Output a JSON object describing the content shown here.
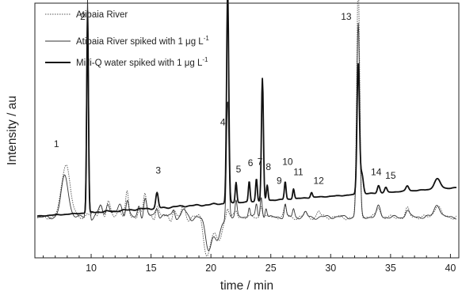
{
  "chart_data": {
    "type": "line",
    "xlabel": "time / min",
    "ylabel": "Intensity / au",
    "xlim": [
      5.3,
      40.7
    ],
    "ylim": [
      0,
      1.0
    ],
    "x_ticks": [
      10,
      15,
      20,
      25,
      30,
      35,
      40
    ],
    "y_ticks_shown": false,
    "grid": false,
    "legend_position": "top-left",
    "series": [
      {
        "name": "Atibaia River",
        "style": "dotted",
        "color": "#555555",
        "baseline": 0.16,
        "noise": 0.025,
        "noise_phase": 1.7,
        "peaks": [
          [
            7.9,
            0.21,
            0.35
          ],
          [
            9.7,
            0.02,
            0.15
          ],
          [
            10.8,
            0.05,
            0.15
          ],
          [
            11.4,
            0.05,
            0.15
          ],
          [
            12.4,
            0.04,
            0.2
          ],
          [
            13.0,
            0.09,
            0.12
          ],
          [
            14.0,
            0.05,
            0.12
          ],
          [
            14.5,
            0.08,
            0.12
          ],
          [
            15.5,
            0.05,
            0.12
          ],
          [
            16.9,
            0.04,
            0.12
          ],
          [
            17.7,
            0.03,
            0.15
          ],
          [
            19.7,
            -0.14,
            0.3
          ],
          [
            20.6,
            -0.1,
            0.25
          ],
          [
            21.4,
            0.04,
            0.1
          ],
          [
            22.1,
            0.02,
            0.1
          ],
          [
            24.2,
            0.05,
            0.1
          ],
          [
            26.2,
            0.04,
            0.1
          ],
          [
            27.9,
            0.02,
            0.12
          ],
          [
            29.0,
            0.02,
            0.12
          ],
          [
            32.3,
            0.91,
            0.12
          ],
          [
            34.0,
            0.04,
            0.15
          ],
          [
            36.4,
            0.03,
            0.15
          ],
          [
            38.9,
            0.05,
            0.25
          ]
        ]
      },
      {
        "name": "Atibaia River spiked with 1 μg L",
        "name_superscript": "-1",
        "style": "solid-thin",
        "color": "#333333",
        "baseline": 0.16,
        "noise": 0.02,
        "noise_phase": 0.4,
        "peaks": [
          [
            7.8,
            0.16,
            0.3
          ],
          [
            9.7,
            0.86,
            0.09
          ],
          [
            10.8,
            0.05,
            0.15
          ],
          [
            11.4,
            0.06,
            0.15
          ],
          [
            12.4,
            0.05,
            0.2
          ],
          [
            13.0,
            0.07,
            0.12
          ],
          [
            14.0,
            0.05,
            0.12
          ],
          [
            14.5,
            0.07,
            0.12
          ],
          [
            15.5,
            0.04,
            0.12
          ],
          [
            16.9,
            0.04,
            0.12
          ],
          [
            17.7,
            0.03,
            0.15
          ],
          [
            19.8,
            -0.12,
            0.3
          ],
          [
            20.6,
            -0.09,
            0.25
          ],
          [
            21.4,
            0.47,
            0.1
          ],
          [
            22.1,
            0.06,
            0.08
          ],
          [
            23.2,
            0.04,
            0.08
          ],
          [
            23.8,
            0.05,
            0.08
          ],
          [
            24.2,
            0.08,
            0.08
          ],
          [
            24.6,
            0.04,
            0.08
          ],
          [
            26.2,
            0.05,
            0.08
          ],
          [
            26.9,
            0.03,
            0.08
          ],
          [
            27.9,
            0.02,
            0.12
          ],
          [
            32.3,
            0.76,
            0.12
          ],
          [
            34.0,
            0.04,
            0.15
          ],
          [
            36.4,
            0.03,
            0.15
          ],
          [
            38.9,
            0.05,
            0.25
          ]
        ]
      },
      {
        "name": "Milli-Q water spiked with 1 μg L",
        "name_superscript": "-1",
        "style": "solid-thick",
        "color": "#111111",
        "baseline": 0.165,
        "slope": 0.0032,
        "noise": 0.004,
        "noise_phase": 2.9,
        "peaks": [
          [
            9.7,
            0.79,
            0.07
          ],
          [
            15.5,
            0.06,
            0.1
          ],
          [
            21.4,
            0.84,
            0.09
          ],
          [
            22.1,
            0.08,
            0.07
          ],
          [
            23.2,
            0.08,
            0.07
          ],
          [
            23.8,
            0.09,
            0.07
          ],
          [
            24.3,
            0.48,
            0.08
          ],
          [
            24.7,
            0.06,
            0.07
          ],
          [
            26.2,
            0.07,
            0.07
          ],
          [
            26.9,
            0.04,
            0.07
          ],
          [
            28.4,
            0.02,
            0.08
          ],
          [
            32.3,
            0.51,
            0.1
          ],
          [
            32.6,
            0.08,
            0.12
          ],
          [
            34.0,
            0.03,
            0.1
          ],
          [
            34.6,
            0.02,
            0.1
          ],
          [
            36.4,
            0.02,
            0.12
          ],
          [
            38.9,
            0.04,
            0.25
          ]
        ]
      }
    ],
    "peak_labels": [
      {
        "text": "1",
        "x": 7.1,
        "y": 0.435
      },
      {
        "text": "2",
        "x": 9.3,
        "y": 0.935
      },
      {
        "text": "3",
        "x": 15.6,
        "y": 0.33
      },
      {
        "text": "4",
        "x": 21.0,
        "y": 0.52
      },
      {
        "text": "5",
        "x": 22.3,
        "y": 0.335
      },
      {
        "text": "6",
        "x": 23.3,
        "y": 0.36
      },
      {
        "text": "7",
        "x": 24.1,
        "y": 0.365
      },
      {
        "text": "8",
        "x": 24.8,
        "y": 0.345
      },
      {
        "text": "9",
        "x": 25.7,
        "y": 0.29
      },
      {
        "text": "10",
        "x": 26.4,
        "y": 0.365
      },
      {
        "text": "11",
        "x": 27.3,
        "y": 0.325
      },
      {
        "text": "12",
        "x": 29.0,
        "y": 0.29
      },
      {
        "text": "13",
        "x": 31.3,
        "y": 0.935
      },
      {
        "text": "14",
        "x": 33.8,
        "y": 0.325
      },
      {
        "text": "15",
        "x": 35.0,
        "y": 0.31
      }
    ]
  }
}
